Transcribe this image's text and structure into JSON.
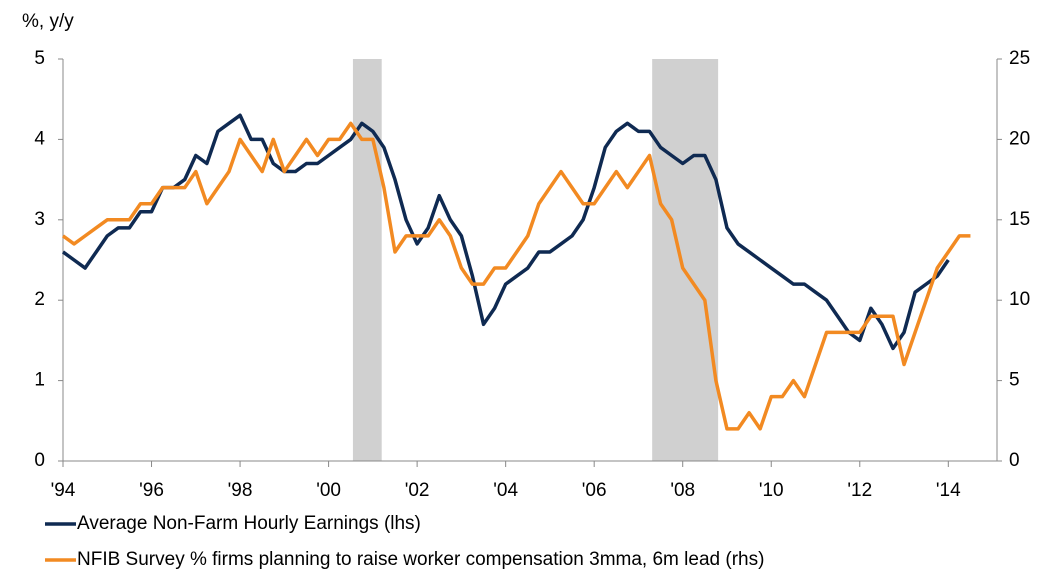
{
  "chart_data": {
    "type": "line",
    "y_label": "%, y/y",
    "x": [
      1994,
      1994.25,
      1994.5,
      1994.75,
      1995,
      1995.25,
      1995.5,
      1995.75,
      1996,
      1996.25,
      1996.5,
      1996.75,
      1997,
      1997.25,
      1997.5,
      1997.75,
      1998,
      1998.25,
      1998.5,
      1998.75,
      1999,
      1999.25,
      1999.5,
      1999.75,
      2000,
      2000.25,
      2000.5,
      2000.75,
      2001,
      2001.25,
      2001.5,
      2001.75,
      2002,
      2002.25,
      2002.5,
      2002.75,
      2003,
      2003.25,
      2003.5,
      2003.75,
      2004,
      2004.25,
      2004.5,
      2004.75,
      2005,
      2005.25,
      2005.5,
      2005.75,
      2006,
      2006.25,
      2006.5,
      2006.75,
      2007,
      2007.25,
      2007.5,
      2007.75,
      2008,
      2008.25,
      2008.5,
      2008.75,
      2009,
      2009.25,
      2009.5,
      2009.75,
      2010,
      2010.25,
      2010.5,
      2010.75,
      2011,
      2011.25,
      2011.5,
      2011.75,
      2012,
      2012.25,
      2012.5,
      2012.75,
      2013,
      2013.25,
      2013.5,
      2013.75,
      2014,
      2014.25,
      2014.5
    ],
    "series": [
      {
        "name": "Average Non-Farm Hourly Earnings (lhs)",
        "color": "#0f2a52",
        "axis": "y",
        "values": [
          2.6,
          2.5,
          2.4,
          2.6,
          2.8,
          2.9,
          2.9,
          3.1,
          3.1,
          3.4,
          3.4,
          3.5,
          3.8,
          3.7,
          4.1,
          4.2,
          4.3,
          4.0,
          4.0,
          3.7,
          3.6,
          3.6,
          3.7,
          3.7,
          3.8,
          3.9,
          4.0,
          4.2,
          4.1,
          3.9,
          3.5,
          3.0,
          2.7,
          2.9,
          3.3,
          3.0,
          2.8,
          2.3,
          1.7,
          1.9,
          2.2,
          2.3,
          2.4,
          2.6,
          2.6,
          2.7,
          2.8,
          3.0,
          3.4,
          3.9,
          4.1,
          4.2,
          4.1,
          4.1,
          3.9,
          3.8,
          3.7,
          3.8,
          3.8,
          3.5,
          2.9,
          2.7,
          2.6,
          2.5,
          2.4,
          2.3,
          2.2,
          2.2,
          2.1,
          2.0,
          1.8,
          1.6,
          1.5,
          1.9,
          1.7,
          1.4,
          1.6,
          2.1,
          2.2,
          2.3,
          2.5,
          null,
          null
        ]
      },
      {
        "name": "NFIB Survey % firms planning to raise worker compensation 3mma, 6m lead (rhs)",
        "color": "#f28a22",
        "axis": "y2",
        "values": [
          14,
          13.5,
          14,
          14.5,
          15,
          15,
          15,
          16,
          16,
          17,
          17,
          17,
          18,
          16,
          17,
          18,
          20,
          19,
          18,
          20,
          18,
          19,
          20,
          19,
          20,
          20,
          21,
          20,
          20,
          17,
          13,
          14,
          14,
          14,
          15,
          14,
          12,
          11,
          11,
          12,
          12,
          13,
          14,
          16,
          17,
          18,
          17,
          16,
          16,
          17,
          18,
          17,
          18,
          19,
          16,
          15,
          12,
          11,
          10,
          5,
          2,
          2,
          3,
          2,
          4,
          4,
          5,
          4,
          6,
          8,
          8,
          8,
          8,
          9,
          9,
          9,
          6,
          8,
          10,
          12,
          13,
          14,
          14
        ]
      }
    ],
    "recessions": [
      [
        2000.55,
        2001.2
      ],
      [
        2007.31,
        2008.8
      ]
    ],
    "recession_color": "#d0d0d0",
    "xlim": [
      1994,
      2015.1
    ],
    "xticks": [
      {
        "value": 1994,
        "label": "'94"
      },
      {
        "value": 1996,
        "label": "'96"
      },
      {
        "value": 1998,
        "label": "'98"
      },
      {
        "value": 2000,
        "label": "'00"
      },
      {
        "value": 2002,
        "label": "'02"
      },
      {
        "value": 2004,
        "label": "'04"
      },
      {
        "value": 2006,
        "label": "'06"
      },
      {
        "value": 2008,
        "label": "'08"
      },
      {
        "value": 2010,
        "label": "'10"
      },
      {
        "value": 2012,
        "label": "'12"
      },
      {
        "value": 2014,
        "label": "'14"
      }
    ],
    "ylim": [
      0,
      5
    ],
    "yticks": [
      0,
      1,
      2,
      3,
      4,
      5
    ],
    "y2lim": [
      0,
      25
    ],
    "y2ticks": [
      0,
      5,
      10,
      15,
      20,
      25
    ],
    "grid": false
  }
}
